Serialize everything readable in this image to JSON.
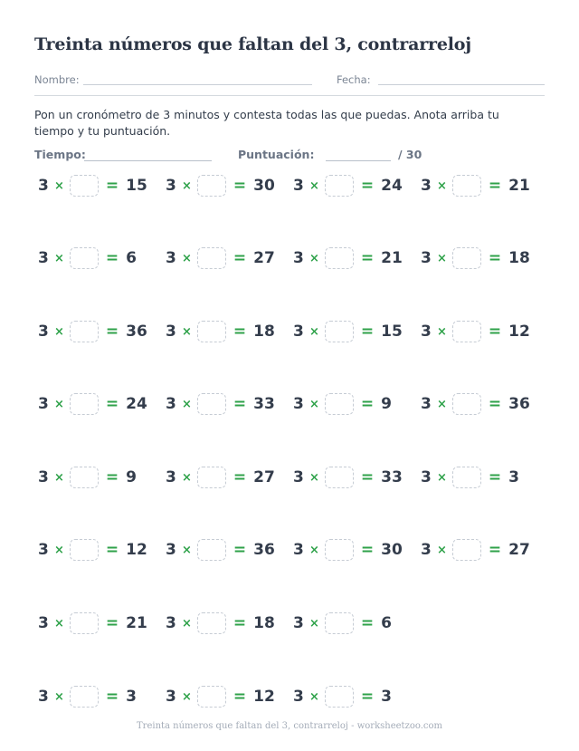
{
  "title": "Treinta números que faltan del 3, contrarreloj",
  "header": {
    "name_label": "Nombre:",
    "date_label": "Fecha:"
  },
  "instructions": "Pon un cronómetro de 3 minutos y contesta todas las que puedas. Anota arriba tu tiempo y tu puntuación.",
  "score": {
    "time_label": "Tiempo:",
    "score_label": "Puntuación:",
    "total": "/ 30"
  },
  "problems": [
    {
      "factor": "3",
      "op": "×",
      "eq": "=",
      "product": "15"
    },
    {
      "factor": "3",
      "op": "×",
      "eq": "=",
      "product": "30"
    },
    {
      "factor": "3",
      "op": "×",
      "eq": "=",
      "product": "24"
    },
    {
      "factor": "3",
      "op": "×",
      "eq": "=",
      "product": "21"
    },
    {
      "factor": "3",
      "op": "×",
      "eq": "=",
      "product": "6"
    },
    {
      "factor": "3",
      "op": "×",
      "eq": "=",
      "product": "27"
    },
    {
      "factor": "3",
      "op": "×",
      "eq": "=",
      "product": "21"
    },
    {
      "factor": "3",
      "op": "×",
      "eq": "=",
      "product": "18"
    },
    {
      "factor": "3",
      "op": "×",
      "eq": "=",
      "product": "36"
    },
    {
      "factor": "3",
      "op": "×",
      "eq": "=",
      "product": "18"
    },
    {
      "factor": "3",
      "op": "×",
      "eq": "=",
      "product": "15"
    },
    {
      "factor": "3",
      "op": "×",
      "eq": "=",
      "product": "12"
    },
    {
      "factor": "3",
      "op": "×",
      "eq": "=",
      "product": "24"
    },
    {
      "factor": "3",
      "op": "×",
      "eq": "=",
      "product": "33"
    },
    {
      "factor": "3",
      "op": "×",
      "eq": "=",
      "product": "9"
    },
    {
      "factor": "3",
      "op": "×",
      "eq": "=",
      "product": "36"
    },
    {
      "factor": "3",
      "op": "×",
      "eq": "=",
      "product": "9"
    },
    {
      "factor": "3",
      "op": "×",
      "eq": "=",
      "product": "27"
    },
    {
      "factor": "3",
      "op": "×",
      "eq": "=",
      "product": "33"
    },
    {
      "factor": "3",
      "op": "×",
      "eq": "=",
      "product": "3"
    },
    {
      "factor": "3",
      "op": "×",
      "eq": "=",
      "product": "12"
    },
    {
      "factor": "3",
      "op": "×",
      "eq": "=",
      "product": "36"
    },
    {
      "factor": "3",
      "op": "×",
      "eq": "=",
      "product": "30"
    },
    {
      "factor": "3",
      "op": "×",
      "eq": "=",
      "product": "27"
    },
    {
      "factor": "3",
      "op": "×",
      "eq": "=",
      "product": "21"
    },
    {
      "factor": "3",
      "op": "×",
      "eq": "=",
      "product": "18"
    },
    {
      "factor": "3",
      "op": "×",
      "eq": "=",
      "product": "6"
    },
    {
      "factor": "3",
      "op": "×",
      "eq": "=",
      "product": "3"
    },
    {
      "factor": "3",
      "op": "×",
      "eq": "=",
      "product": "12"
    },
    {
      "factor": "3",
      "op": "×",
      "eq": "=",
      "product": "3"
    }
  ],
  "footer": "Treinta números que faltan del 3, contrarreloj - worksheetzoo.com",
  "colors": {
    "accent": "#2fa24a",
    "text": "#343d4c",
    "muted": "#7b8594"
  }
}
